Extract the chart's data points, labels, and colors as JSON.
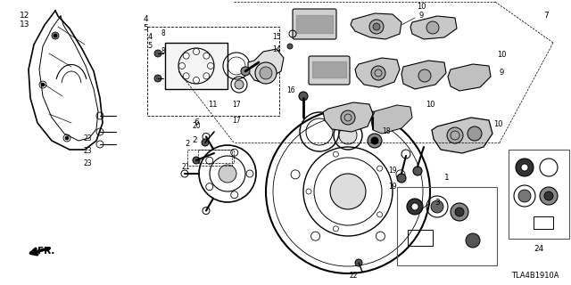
{
  "bg_color": "#ffffff",
  "diagram_code": "TLA4B1910A",
  "figsize": [
    6.4,
    3.2
  ],
  "dpi": 100
}
